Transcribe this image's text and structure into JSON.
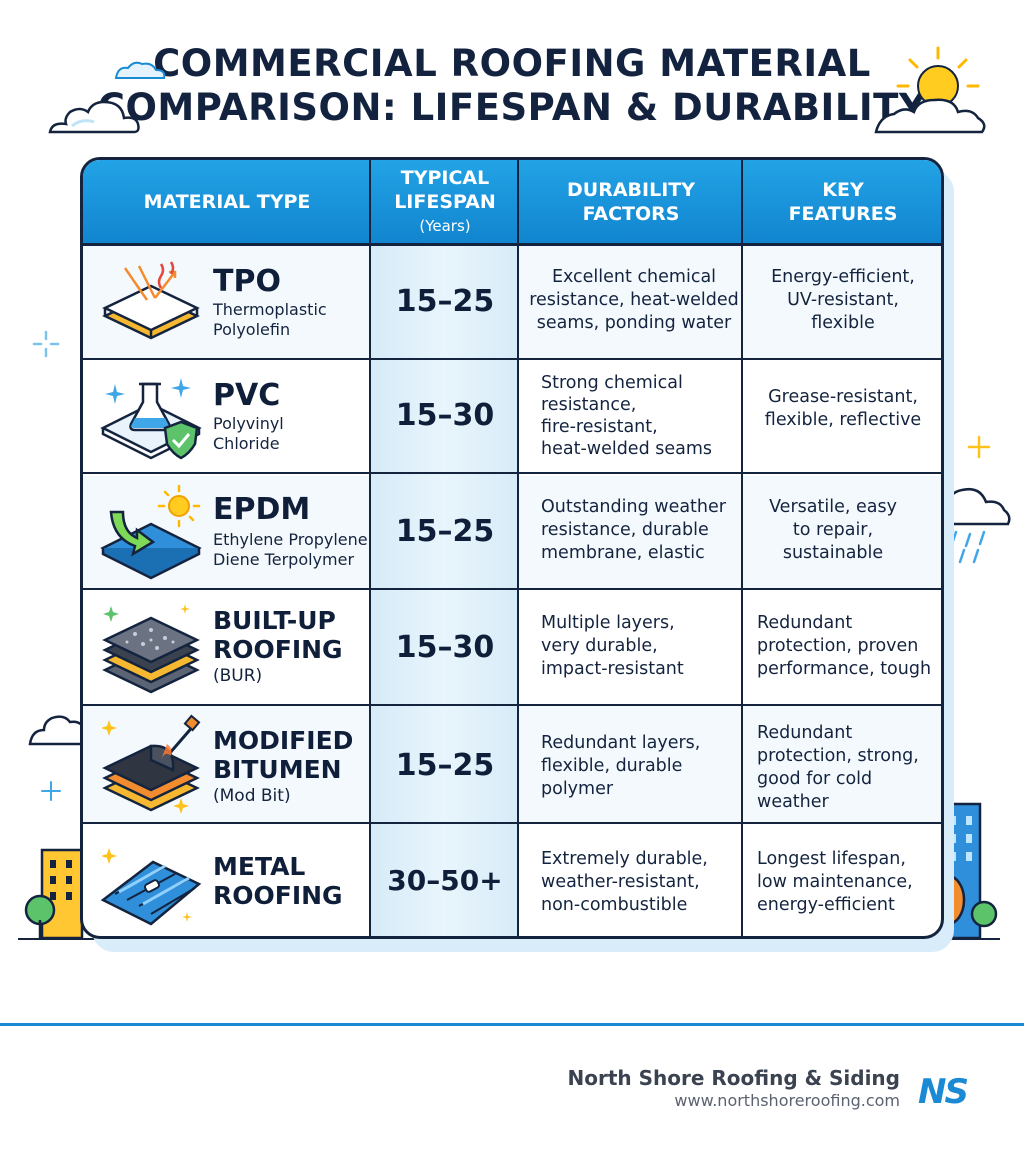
{
  "title": {
    "line1": "COMMERCIAL ROOFING MATERIAL",
    "line2": "COMPARISON: LIFESPAN & DURABILITY"
  },
  "table": {
    "headers": {
      "material": "MATERIAL TYPE",
      "lifespan_line1": "TYPICAL",
      "lifespan_line2": "LIFESPAN",
      "lifespan_sub": "(Years)",
      "durability_line1": "DURABILITY",
      "durability_line2": "FACTORS",
      "features_line1": "KEY",
      "features_line2": "FEATURES"
    },
    "rows": [
      {
        "name": "TPO",
        "sub1": "Thermoplastic",
        "sub2": "Polyolefin",
        "icon": "tpo-membrane-icon",
        "lifespan": "15–25",
        "durability": [
          "Excellent chemical",
          "resistance, heat-welded",
          "seams, ponding water"
        ],
        "features": [
          "Energy-efficient,",
          "UV-resistant,",
          "flexible"
        ]
      },
      {
        "name": "PVC",
        "sub1": "Polyvinyl",
        "sub2": "Chloride",
        "icon": "pvc-flask-shield-icon",
        "lifespan": "15–30",
        "durability": [
          "Strong chemical",
          "resistance,",
          "fire-resistant,",
          "heat-welded seams"
        ],
        "features": [
          "Grease-resistant,",
          "flexible, reflective"
        ]
      },
      {
        "name": "EPDM",
        "sub1": "Ethylene Propylene",
        "sub2": "Diene Terpolymer",
        "icon": "epdm-sheet-icon",
        "lifespan": "15–25",
        "durability": [
          "Outstanding weather",
          "resistance, durable",
          "membrane, elastic"
        ],
        "features": [
          "Versatile, easy",
          "to repair,",
          "sustainable"
        ]
      },
      {
        "name1": "BUILT-UP",
        "name2": "ROOFING",
        "sub1": "(BUR)",
        "icon": "built-up-layers-icon",
        "lifespan": "15–30",
        "durability": [
          "Multiple layers,",
          "very durable,",
          "impact-resistant"
        ],
        "features": [
          "Redundant",
          "protection, proven",
          "performance, tough"
        ]
      },
      {
        "name1": "MODIFIED",
        "name2": "BITUMEN",
        "sub1": "(Mod Bit)",
        "icon": "mod-bit-torch-icon",
        "lifespan": "15–25",
        "durability": [
          "Redundant layers,",
          "flexible, durable",
          "polymer"
        ],
        "features": [
          "Redundant",
          "protection, strong,",
          "good for cold",
          "weather"
        ]
      },
      {
        "name1": "METAL",
        "name2": "ROOFING",
        "icon": "metal-roof-panel-icon",
        "lifespan": "30–50+",
        "durability": [
          "Extremely durable,",
          "weather-resistant,",
          "non-combustible"
        ],
        "features": [
          "Longest lifespan,",
          "low maintenance,",
          "energy-efficient"
        ]
      }
    ]
  },
  "footer": {
    "company": "North Shore Roofing & Siding",
    "url": "www.northshoreroofing.com",
    "logo_text": "NS"
  },
  "colors": {
    "header_blue": "#1a93dc",
    "outline": "#14243f",
    "lifespan_col": "#dcedf9",
    "brand_blue": "#1a8ad4"
  }
}
